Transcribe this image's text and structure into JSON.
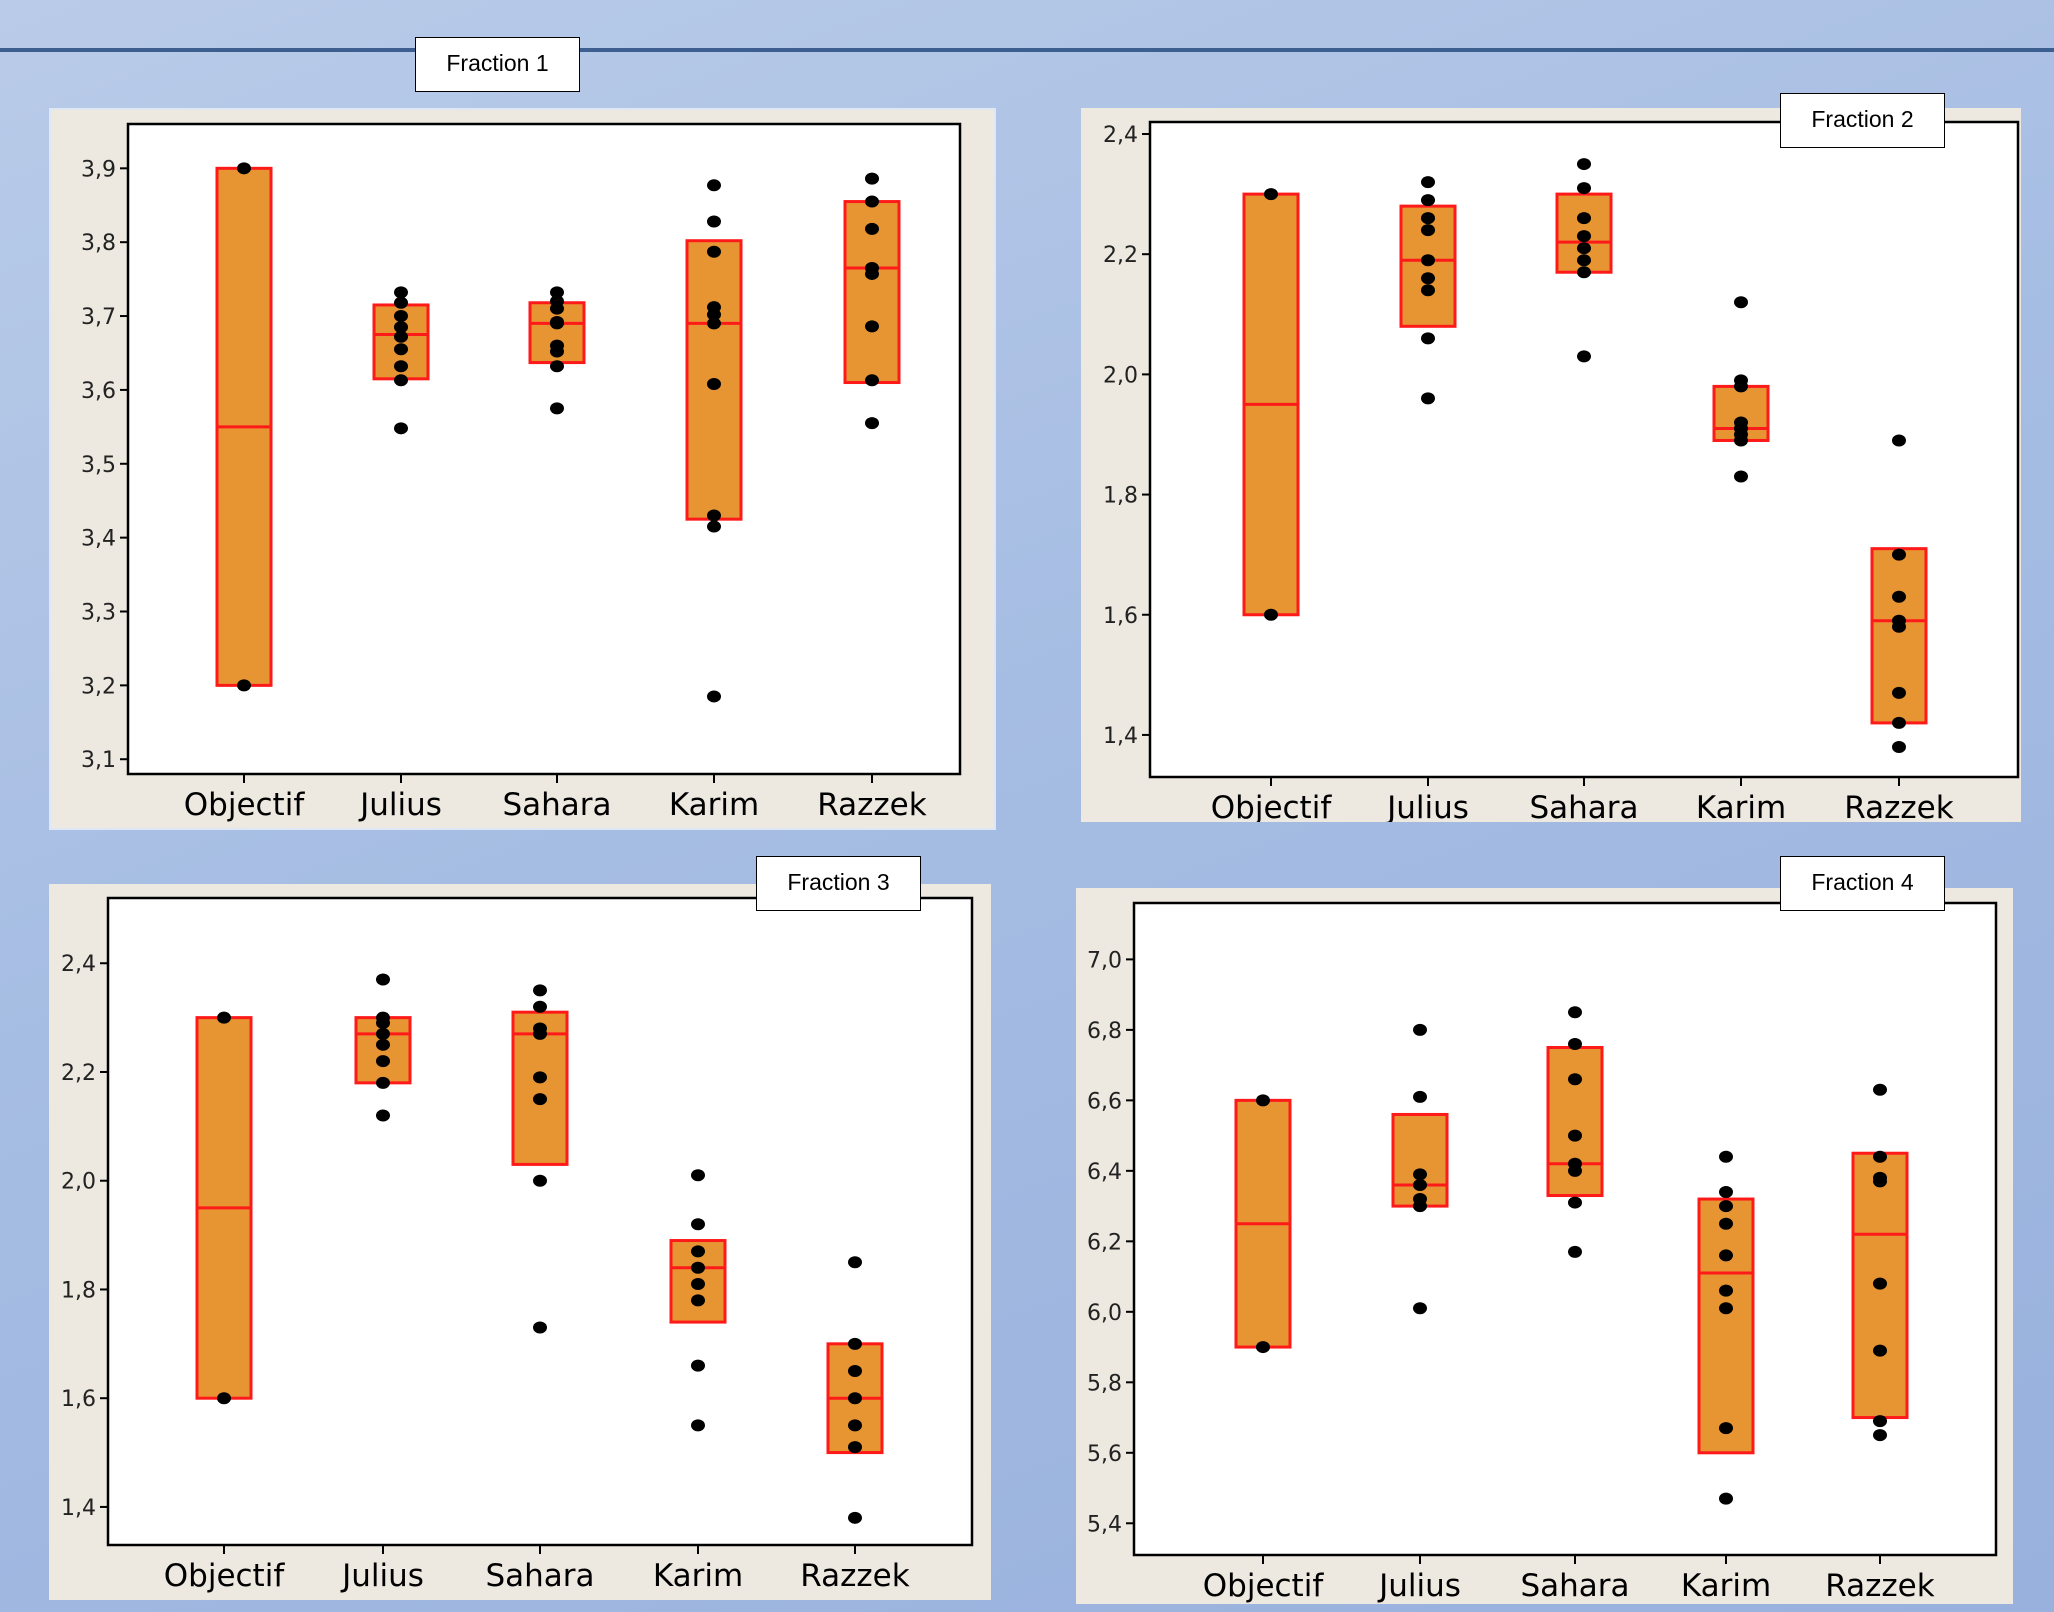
{
  "colors": {
    "background": "#a9bfe3",
    "panel": "#ede8e0",
    "plot_area": "#ffffff",
    "box_fill": "#e69532",
    "box_edge": "#ff1a1a",
    "point": "#000000",
    "rule": "#3d5f8f"
  },
  "chart_data": [
    {
      "type": "boxplot",
      "label": "Fraction 1",
      "categories": [
        "Objectif",
        "Julius",
        "Sahara",
        "Karim",
        "Razzek"
      ],
      "ylim": [
        3.08,
        3.96
      ],
      "yticks": [
        3.1,
        3.2,
        3.3,
        3.4,
        3.5,
        3.6,
        3.7,
        3.8,
        3.9
      ],
      "yticklabels": [
        "3,1",
        "3,2",
        "3,3",
        "3,4",
        "3,5",
        "3,6",
        "3,7",
        "3,8",
        "3,9"
      ],
      "series": [
        {
          "category": "Objectif",
          "q1": 3.2,
          "median": 3.55,
          "q3": 3.9,
          "points": [
            3.2,
            3.9
          ]
        },
        {
          "category": "Julius",
          "q1": 3.615,
          "median": 3.675,
          "q3": 3.715,
          "points": [
            3.548,
            3.613,
            3.632,
            3.655,
            3.672,
            3.685,
            3.7,
            3.718,
            3.732
          ]
        },
        {
          "category": "Sahara",
          "q1": 3.637,
          "median": 3.69,
          "q3": 3.718,
          "points": [
            3.575,
            3.632,
            3.652,
            3.66,
            3.69,
            3.692,
            3.71,
            3.72,
            3.732
          ]
        },
        {
          "category": "Karim",
          "q1": 3.425,
          "median": 3.69,
          "q3": 3.802,
          "points": [
            3.185,
            3.415,
            3.43,
            3.608,
            3.69,
            3.702,
            3.712,
            3.787,
            3.828,
            3.877
          ]
        },
        {
          "category": "Razzek",
          "q1": 3.61,
          "median": 3.765,
          "q3": 3.855,
          "points": [
            3.555,
            3.613,
            3.686,
            3.757,
            3.765,
            3.818,
            3.855,
            3.886
          ]
        }
      ]
    },
    {
      "type": "boxplot",
      "label": "Fraction 2",
      "categories": [
        "Objectif",
        "Julius",
        "Sahara",
        "Karim",
        "Razzek"
      ],
      "ylim": [
        1.33,
        2.42
      ],
      "yticks": [
        1.4,
        1.6,
        1.8,
        2.0,
        2.2,
        2.4
      ],
      "yticklabels": [
        "1,4",
        "1,6",
        "1,8",
        "2,0",
        "2,2",
        "2,4"
      ],
      "series": [
        {
          "category": "Objectif",
          "q1": 1.6,
          "median": 1.95,
          "q3": 2.3,
          "points": [
            1.6,
            2.3
          ]
        },
        {
          "category": "Julius",
          "q1": 2.08,
          "median": 2.19,
          "q3": 2.28,
          "points": [
            1.96,
            2.06,
            2.14,
            2.16,
            2.19,
            2.24,
            2.26,
            2.29,
            2.32
          ]
        },
        {
          "category": "Sahara",
          "q1": 2.17,
          "median": 2.22,
          "q3": 2.3,
          "points": [
            2.03,
            2.17,
            2.19,
            2.21,
            2.23,
            2.26,
            2.31,
            2.35
          ]
        },
        {
          "category": "Karim",
          "q1": 1.89,
          "median": 1.91,
          "q3": 1.98,
          "points": [
            1.83,
            1.89,
            1.9,
            1.91,
            1.92,
            1.98,
            1.99,
            2.12
          ]
        },
        {
          "category": "Razzek",
          "q1": 1.42,
          "median": 1.59,
          "q3": 1.71,
          "points": [
            1.38,
            1.42,
            1.47,
            1.58,
            1.59,
            1.63,
            1.7,
            1.89
          ]
        }
      ]
    },
    {
      "type": "boxplot",
      "label": "Fraction 3",
      "categories": [
        "Objectif",
        "Julius",
        "Sahara",
        "Karim",
        "Razzek"
      ],
      "ylim": [
        1.33,
        2.52
      ],
      "yticks": [
        1.4,
        1.6,
        1.8,
        2.0,
        2.2,
        2.4
      ],
      "yticklabels": [
        "1,4",
        "1,6",
        "1,8",
        "2,0",
        "2,2",
        "2,4"
      ],
      "series": [
        {
          "category": "Objectif",
          "q1": 1.6,
          "median": 1.95,
          "q3": 2.3,
          "points": [
            1.6,
            2.3
          ]
        },
        {
          "category": "Julius",
          "q1": 2.18,
          "median": 2.27,
          "q3": 2.3,
          "points": [
            2.12,
            2.18,
            2.22,
            2.25,
            2.27,
            2.29,
            2.3,
            2.37
          ]
        },
        {
          "category": "Sahara",
          "q1": 2.03,
          "median": 2.27,
          "q3": 2.31,
          "points": [
            1.73,
            2.0,
            2.15,
            2.19,
            2.27,
            2.28,
            2.32,
            2.35
          ]
        },
        {
          "category": "Karim",
          "q1": 1.74,
          "median": 1.84,
          "q3": 1.89,
          "points": [
            1.55,
            1.66,
            1.78,
            1.81,
            1.84,
            1.87,
            1.92,
            2.01
          ]
        },
        {
          "category": "Razzek",
          "q1": 1.5,
          "median": 1.6,
          "q3": 1.7,
          "points": [
            1.38,
            1.51,
            1.55,
            1.6,
            1.65,
            1.7,
            1.85
          ]
        }
      ]
    },
    {
      "type": "boxplot",
      "label": "Fraction 4",
      "categories": [
        "Objectif",
        "Julius",
        "Sahara",
        "Karim",
        "Razzek"
      ],
      "ylim": [
        5.31,
        7.16
      ],
      "yticks": [
        5.4,
        5.6,
        5.8,
        6.0,
        6.2,
        6.4,
        6.6,
        6.8,
        7.0
      ],
      "yticklabels": [
        "5,4",
        "5,6",
        "5,8",
        "6,0",
        "6,2",
        "6,4",
        "6,6",
        "6,8",
        "7,0"
      ],
      "series": [
        {
          "category": "Objectif",
          "q1": 5.9,
          "median": 6.25,
          "q3": 6.6,
          "points": [
            5.9,
            6.6
          ]
        },
        {
          "category": "Julius",
          "q1": 6.3,
          "median": 6.36,
          "q3": 6.56,
          "points": [
            6.01,
            6.3,
            6.32,
            6.36,
            6.39,
            6.61,
            6.8
          ]
        },
        {
          "category": "Sahara",
          "q1": 6.33,
          "median": 6.42,
          "q3": 6.75,
          "points": [
            6.17,
            6.31,
            6.4,
            6.42,
            6.5,
            6.66,
            6.76,
            6.85
          ]
        },
        {
          "category": "Karim",
          "q1": 5.6,
          "median": 6.11,
          "q3": 6.32,
          "points": [
            5.47,
            5.67,
            6.01,
            6.06,
            6.16,
            6.25,
            6.3,
            6.34,
            6.44
          ]
        },
        {
          "category": "Razzek",
          "q1": 5.7,
          "median": 6.22,
          "q3": 6.45,
          "points": [
            5.65,
            5.69,
            5.89,
            6.08,
            6.37,
            6.38,
            6.44,
            6.63
          ]
        }
      ]
    }
  ]
}
